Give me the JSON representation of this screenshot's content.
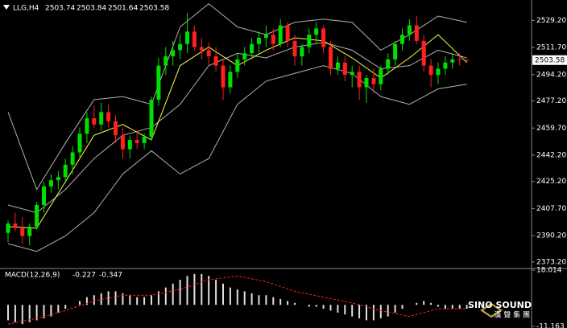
{
  "chart_data": [
    {
      "type": "candlestick",
      "symbol": "LLG,H4",
      "ohlc": [
        2503.74,
        2503.84,
        2501.64,
        2503.58
      ],
      "current_price": 2503.58,
      "up_color": "#00e000",
      "down_color": "#ff2020",
      "candles": [
        [
          2392,
          2400,
          2386,
          2398
        ],
        [
          2398,
          2405,
          2393,
          2395
        ],
        [
          2395,
          2402,
          2385,
          2390
        ],
        [
          2390,
          2398,
          2384,
          2396
        ],
        [
          2396,
          2412,
          2394,
          2410
        ],
        [
          2410,
          2425,
          2405,
          2422
        ],
        [
          2422,
          2430,
          2418,
          2426
        ],
        [
          2426,
          2432,
          2420,
          2428
        ],
        [
          2428,
          2440,
          2424,
          2436
        ],
        [
          2436,
          2448,
          2430,
          2444
        ],
        [
          2444,
          2460,
          2440,
          2456
        ],
        [
          2456,
          2470,
          2450,
          2466
        ],
        [
          2466,
          2474,
          2460,
          2462
        ],
        [
          2462,
          2476,
          2458,
          2470
        ],
        [
          2470,
          2475,
          2460,
          2464
        ],
        [
          2464,
          2468,
          2450,
          2455
        ],
        [
          2455,
          2460,
          2440,
          2446
        ],
        [
          2446,
          2455,
          2440,
          2452
        ],
        [
          2452,
          2458,
          2446,
          2450
        ],
        [
          2450,
          2456,
          2446,
          2454
        ],
        [
          2454,
          2480,
          2452,
          2478
        ],
        [
          2478,
          2505,
          2474,
          2500
        ],
        [
          2500,
          2512,
          2494,
          2506
        ],
        [
          2506,
          2516,
          2500,
          2510
        ],
        [
          2510,
          2520,
          2504,
          2514
        ],
        [
          2514,
          2534,
          2508,
          2522
        ],
        [
          2522,
          2526,
          2510,
          2512
        ],
        [
          2512,
          2518,
          2504,
          2510
        ],
        [
          2510,
          2515,
          2500,
          2506
        ],
        [
          2506,
          2512,
          2496,
          2500
        ],
        [
          2500,
          2504,
          2478,
          2486
        ],
        [
          2486,
          2500,
          2482,
          2496
        ],
        [
          2496,
          2508,
          2492,
          2504
        ],
        [
          2504,
          2512,
          2500,
          2508
        ],
        [
          2508,
          2518,
          2504,
          2514
        ],
        [
          2514,
          2522,
          2508,
          2518
        ],
        [
          2518,
          2526,
          2512,
          2520
        ],
        [
          2520,
          2524,
          2510,
          2514
        ],
        [
          2514,
          2530,
          2512,
          2526
        ],
        [
          2526,
          2528,
          2512,
          2516
        ],
        [
          2516,
          2520,
          2500,
          2506
        ],
        [
          2506,
          2514,
          2500,
          2512
        ],
        [
          2512,
          2524,
          2508,
          2520
        ],
        [
          2520,
          2528,
          2514,
          2524
        ],
        [
          2524,
          2526,
          2508,
          2512
        ],
        [
          2512,
          2516,
          2494,
          2498
        ],
        [
          2498,
          2506,
          2494,
          2502
        ],
        [
          2502,
          2506,
          2490,
          2494
        ],
        [
          2494,
          2500,
          2486,
          2496
        ],
        [
          2496,
          2500,
          2478,
          2486
        ],
        [
          2486,
          2494,
          2476,
          2492
        ],
        [
          2492,
          2498,
          2482,
          2488
        ],
        [
          2488,
          2500,
          2484,
          2498
        ],
        [
          2498,
          2508,
          2494,
          2504
        ],
        [
          2504,
          2516,
          2500,
          2514
        ],
        [
          2514,
          2524,
          2510,
          2520
        ],
        [
          2520,
          2530,
          2516,
          2526
        ],
        [
          2526,
          2532,
          2514,
          2516
        ],
        [
          2516,
          2520,
          2496,
          2500
        ],
        [
          2500,
          2504,
          2486,
          2494
        ],
        [
          2494,
          2502,
          2488,
          2498
        ],
        [
          2498,
          2506,
          2494,
          2502
        ],
        [
          2502,
          2508,
          2498,
          2504
        ],
        [
          2504,
          2508,
          2500,
          2503.74
        ],
        [
          2503.74,
          2503.84,
          2501.64,
          2503.58
        ]
      ],
      "overlays": [
        {
          "color": "#b0b0b0",
          "x": [
            0,
            4,
            8,
            12,
            16,
            20,
            24,
            28,
            32,
            36,
            40,
            44,
            48,
            52,
            56,
            60,
            64
          ],
          "values": [
            2470,
            2420,
            2450,
            2478,
            2480,
            2475,
            2525,
            2540,
            2525,
            2520,
            2528,
            2530,
            2528,
            2510,
            2520,
            2532,
            2528
          ]
        },
        {
          "color": "#b0b0b0",
          "x": [
            0,
            4,
            8,
            12,
            16,
            20,
            24,
            28,
            32,
            36,
            40,
            44,
            48,
            52,
            56,
            60,
            64
          ],
          "values": [
            2410,
            2405,
            2420,
            2440,
            2455,
            2460,
            2475,
            2500,
            2508,
            2505,
            2512,
            2515,
            2510,
            2498,
            2500,
            2510,
            2505
          ]
        },
        {
          "color": "#b0b0b0",
          "x": [
            0,
            4,
            8,
            12,
            16,
            20,
            24,
            28,
            32,
            36,
            40,
            44,
            48,
            52,
            56,
            60,
            64
          ],
          "values": [
            2385,
            2380,
            2390,
            2405,
            2430,
            2445,
            2430,
            2440,
            2475,
            2490,
            2495,
            2500,
            2495,
            2480,
            2475,
            2485,
            2488
          ]
        },
        {
          "color": "#ffff40",
          "x": [
            0,
            4,
            8,
            12,
            16,
            20,
            24,
            28,
            32,
            36,
            40,
            44,
            48,
            52,
            56,
            60,
            64
          ],
          "values": [
            2396,
            2395,
            2425,
            2455,
            2462,
            2452,
            2500,
            2512,
            2500,
            2510,
            2518,
            2516,
            2505,
            2492,
            2505,
            2520,
            2502
          ]
        }
      ],
      "ylim": [
        2370,
        2542.4
      ],
      "yticks": [
        {
          "value": 2529.2,
          "label": "2529.20"
        },
        {
          "value": 2511.7,
          "label": "2511.70"
        },
        {
          "value": 2494.2,
          "label": "2494.20"
        },
        {
          "value": 2477.2,
          "label": "2477.20"
        },
        {
          "value": 2459.7,
          "label": "2459.70"
        },
        {
          "value": 2442.2,
          "label": "2442.20"
        },
        {
          "value": 2425.2,
          "label": "2425.20"
        },
        {
          "value": 2407.7,
          "label": "2407.70"
        },
        {
          "value": 2390.2,
          "label": "2390.20"
        },
        {
          "value": 2373.2,
          "label": "2373.20"
        }
      ]
    },
    {
      "type": "macd",
      "label": "MACD(12,26,9)",
      "readout": [
        -0.227,
        -0.347
      ],
      "color": "#e0e0e0",
      "signal_color": "#ff2020",
      "histogram": [
        -8,
        -9,
        -10,
        -9,
        -8,
        -7,
        -6,
        -4,
        -2,
        0,
        2,
        4,
        5,
        6,
        7,
        7,
        6,
        5,
        4,
        4,
        5,
        7,
        9,
        11,
        13,
        15,
        16,
        16,
        15,
        13,
        11,
        9,
        8,
        7,
        6,
        5,
        5,
        4,
        3,
        2,
        1,
        0,
        -1,
        -1,
        -2,
        -3,
        -4,
        -5,
        -6,
        -7,
        -8,
        -8,
        -7,
        -6,
        -4,
        -2,
        0,
        1,
        2,
        1,
        -1,
        -2,
        -2,
        -2,
        -2
      ],
      "signal": {
        "x": [
          0,
          4,
          8,
          12,
          16,
          20,
          24,
          28,
          32,
          36,
          40,
          44,
          48,
          52,
          56,
          60,
          64
        ],
        "values": [
          -10,
          -7,
          -3,
          2,
          5,
          5,
          8,
          13,
          15,
          12,
          7,
          4,
          1,
          -3,
          -6,
          -2,
          -2
        ]
      },
      "ylim": [
        -11.163,
        18.014
      ],
      "yticks": [
        18.014,
        -11.163
      ]
    }
  ],
  "watermark": {
    "text": "SINO SOUND",
    "subtext": "漢 聲 集 團"
  }
}
